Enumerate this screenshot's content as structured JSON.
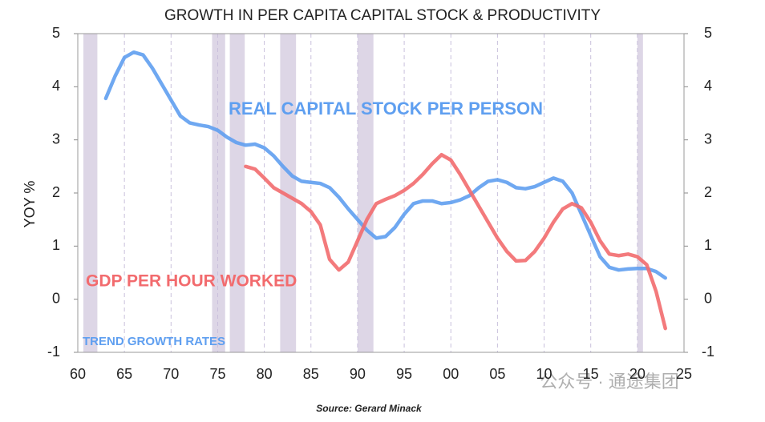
{
  "chart_data": {
    "type": "line",
    "title": "GROWTH IN PER CAPITA CAPITAL STOCK & PRODUCTIVITY",
    "y_label": "YOY %",
    "annotations": [
      "REAL CAPITAL STOCK PER PERSON",
      "GDP PER HOUR WORKED",
      "TREND GROWTH RATES"
    ],
    "source": "Source: Gerard Minack",
    "x": [
      1963,
      1964,
      1965,
      1966,
      1967,
      1968,
      1969,
      1970,
      1971,
      1972,
      1973,
      1974,
      1975,
      1976,
      1977,
      1978,
      1979,
      1980,
      1981,
      1982,
      1983,
      1984,
      1985,
      1986,
      1987,
      1988,
      1989,
      1990,
      1991,
      1992,
      1993,
      1994,
      1995,
      1996,
      1997,
      1998,
      1999,
      2000,
      2001,
      2002,
      2003,
      2004,
      2005,
      2006,
      2007,
      2008,
      2009,
      2010,
      2011,
      2012,
      2013,
      2014,
      2015,
      2016,
      2017,
      2018,
      2019,
      2020,
      2021,
      2022,
      2023
    ],
    "series": [
      {
        "name": "REAL CAPITAL STOCK PER PERSON",
        "color": "#5f9ff0",
        "values": [
          3.78,
          4.2,
          4.55,
          4.65,
          4.6,
          4.35,
          4.05,
          3.75,
          3.45,
          3.32,
          3.28,
          3.25,
          3.18,
          3.05,
          2.95,
          2.9,
          2.92,
          2.85,
          2.7,
          2.5,
          2.32,
          2.22,
          2.2,
          2.18,
          2.1,
          1.92,
          1.7,
          1.5,
          1.3,
          1.15,
          1.18,
          1.35,
          1.6,
          1.8,
          1.85,
          1.85,
          1.8,
          1.82,
          1.87,
          1.95,
          2.1,
          2.22,
          2.25,
          2.2,
          2.1,
          2.08,
          2.12,
          2.2,
          2.28,
          2.22,
          2.0,
          1.6,
          1.2,
          0.8,
          0.6,
          0.55,
          0.57,
          0.58,
          0.58,
          0.52,
          0.4
        ]
      },
      {
        "name": "GDP PER HOUR WORKED",
        "color": "#f26b6e",
        "values": [
          null,
          null,
          null,
          null,
          null,
          null,
          null,
          null,
          null,
          null,
          null,
          null,
          null,
          null,
          null,
          2.5,
          2.45,
          2.28,
          2.1,
          2.0,
          1.9,
          1.8,
          1.65,
          1.4,
          0.75,
          0.55,
          0.7,
          1.1,
          1.5,
          1.8,
          1.88,
          1.95,
          2.05,
          2.18,
          2.35,
          2.55,
          2.72,
          2.62,
          2.35,
          2.05,
          1.75,
          1.45,
          1.15,
          0.9,
          0.72,
          0.73,
          0.9,
          1.15,
          1.45,
          1.7,
          1.8,
          1.72,
          1.45,
          1.1,
          0.85,
          0.82,
          0.85,
          0.8,
          0.65,
          0.15,
          -0.55
        ]
      }
    ],
    "shaded_periods": [
      [
        1960.6,
        1962.1
      ],
      [
        1974.4,
        1975.8
      ],
      [
        1976.3,
        1977.9
      ],
      [
        1981.7,
        1983.4
      ],
      [
        1990,
        1991.7
      ],
      [
        2020,
        2020.6
      ]
    ],
    "shade_color": "#ddd6e6",
    "xlim": [
      1960,
      2025
    ],
    "xticks": [
      {
        "value": 1960,
        "label": "60"
      },
      {
        "value": 1965,
        "label": "65"
      },
      {
        "value": 1970,
        "label": "70"
      },
      {
        "value": 1975,
        "label": "75"
      },
      {
        "value": 1980,
        "label": "80"
      },
      {
        "value": 1985,
        "label": "85"
      },
      {
        "value": 1990,
        "label": "90"
      },
      {
        "value": 1995,
        "label": "95"
      },
      {
        "value": 2000,
        "label": "00"
      },
      {
        "value": 2005,
        "label": "05"
      },
      {
        "value": 2010,
        "label": "10"
      },
      {
        "value": 2015,
        "label": "15"
      },
      {
        "value": 2020,
        "label": "20"
      },
      {
        "value": 2025,
        "label": "25"
      }
    ],
    "ylim": [
      -1,
      5
    ],
    "yticks": [
      -1,
      0,
      1,
      2,
      3,
      4,
      5
    ],
    "y2lim": [
      -1,
      5
    ],
    "y2ticks": [
      -1,
      0,
      1,
      2,
      3,
      4,
      5
    ],
    "grid": true
  },
  "watermark": "公众号 · 通途集团"
}
